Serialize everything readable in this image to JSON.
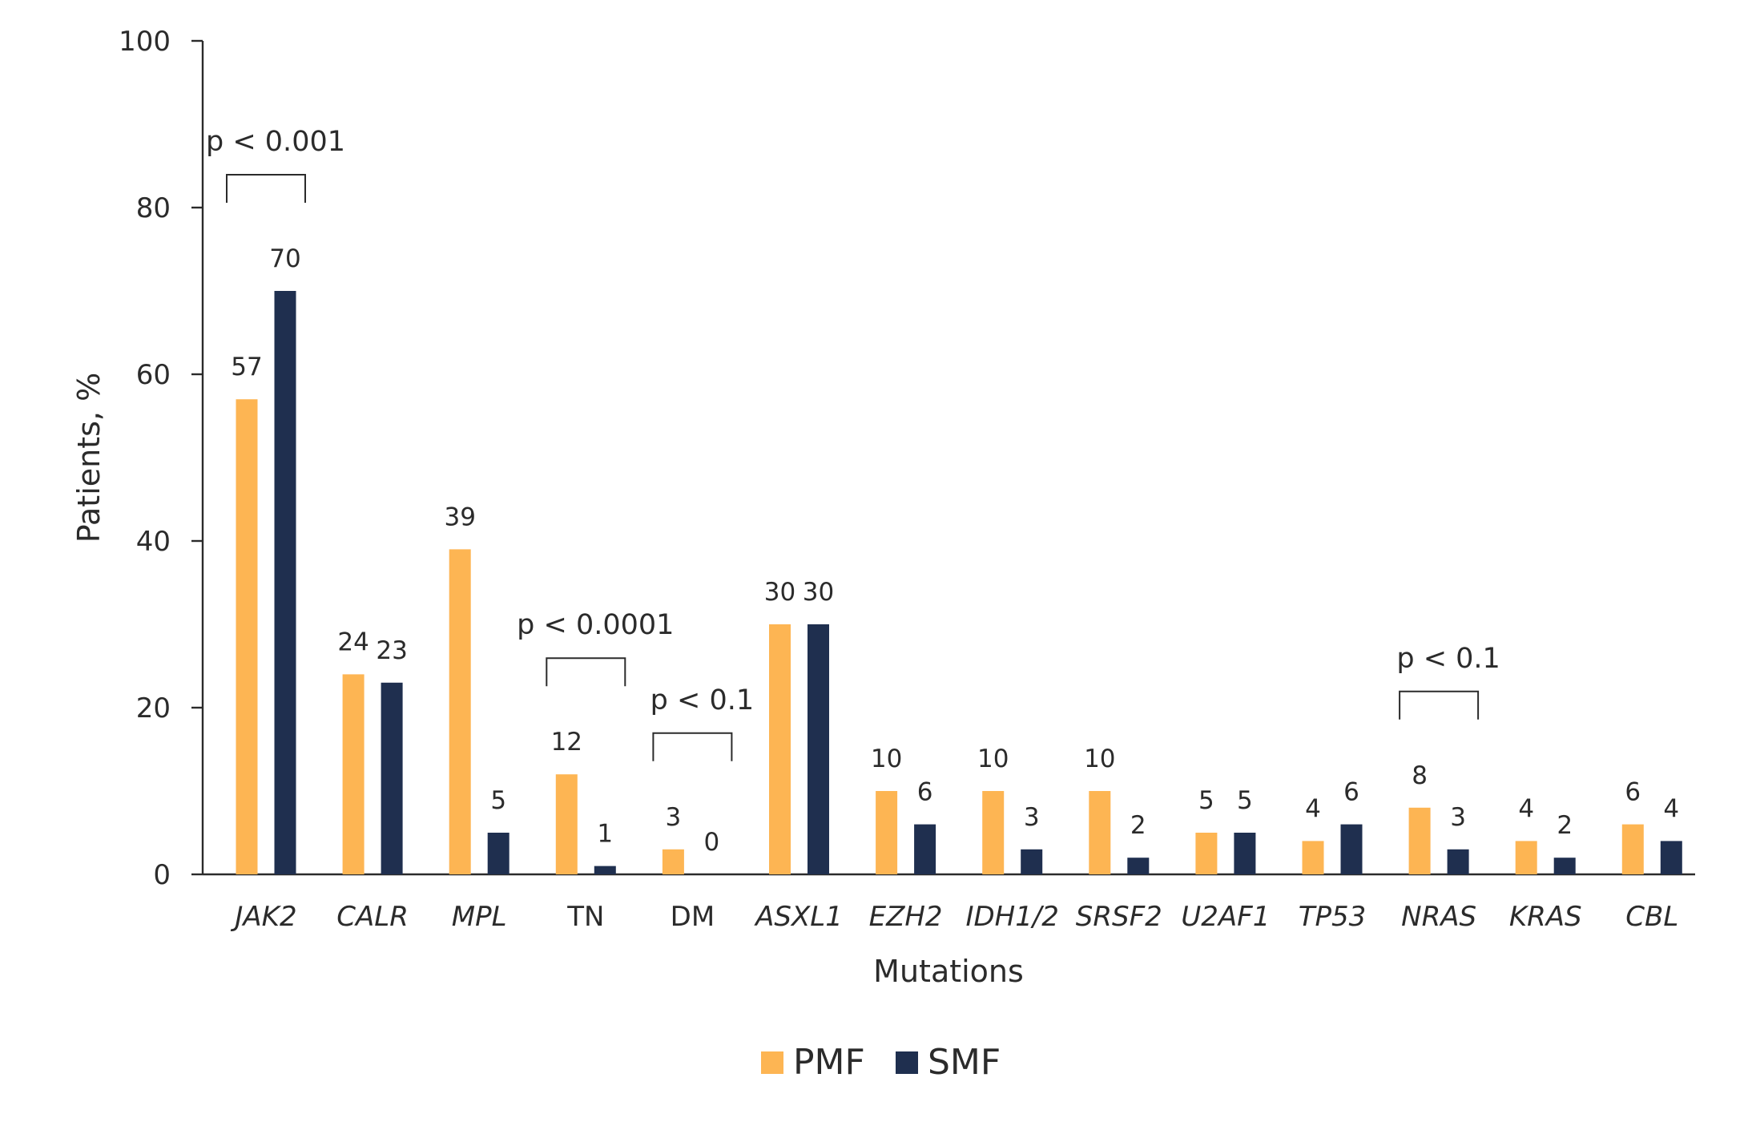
{
  "chart_data": {
    "type": "bar",
    "xlabel": "Mutations",
    "ylabel": "Patients, %",
    "ylim": [
      0,
      100
    ],
    "yticks": [
      0,
      20,
      40,
      60,
      80,
      100
    ],
    "categories": [
      "JAK2",
      "CALR",
      "MPL",
      "TN",
      "DM",
      "ASXL1",
      "EZH2",
      "IDH1/2",
      "SRSF2",
      "U2AF1",
      "TP53",
      "NRAS",
      "KRAS",
      "CBL"
    ],
    "italic_categories": [
      true,
      true,
      true,
      false,
      false,
      true,
      true,
      true,
      true,
      true,
      true,
      true,
      true,
      true
    ],
    "series": [
      {
        "name": "PMF",
        "color": "#FDB553",
        "values": [
          57,
          24,
          39,
          12,
          3,
          30,
          10,
          10,
          10,
          5,
          4,
          8,
          4,
          6
        ]
      },
      {
        "name": "SMF",
        "color": "#1F2F4F",
        "values": [
          70,
          23,
          5,
          1,
          0,
          30,
          6,
          3,
          2,
          5,
          6,
          3,
          2,
          4
        ]
      }
    ],
    "annotations": [
      {
        "category": "JAK2",
        "text": "p < 0.001"
      },
      {
        "category": "TN",
        "text": "p < 0.0001"
      },
      {
        "category": "DM",
        "text": "p < 0.1"
      },
      {
        "category": "NRAS",
        "text": "p < 0.1"
      }
    ],
    "legend_position": "bottom-center",
    "grid": false
  }
}
